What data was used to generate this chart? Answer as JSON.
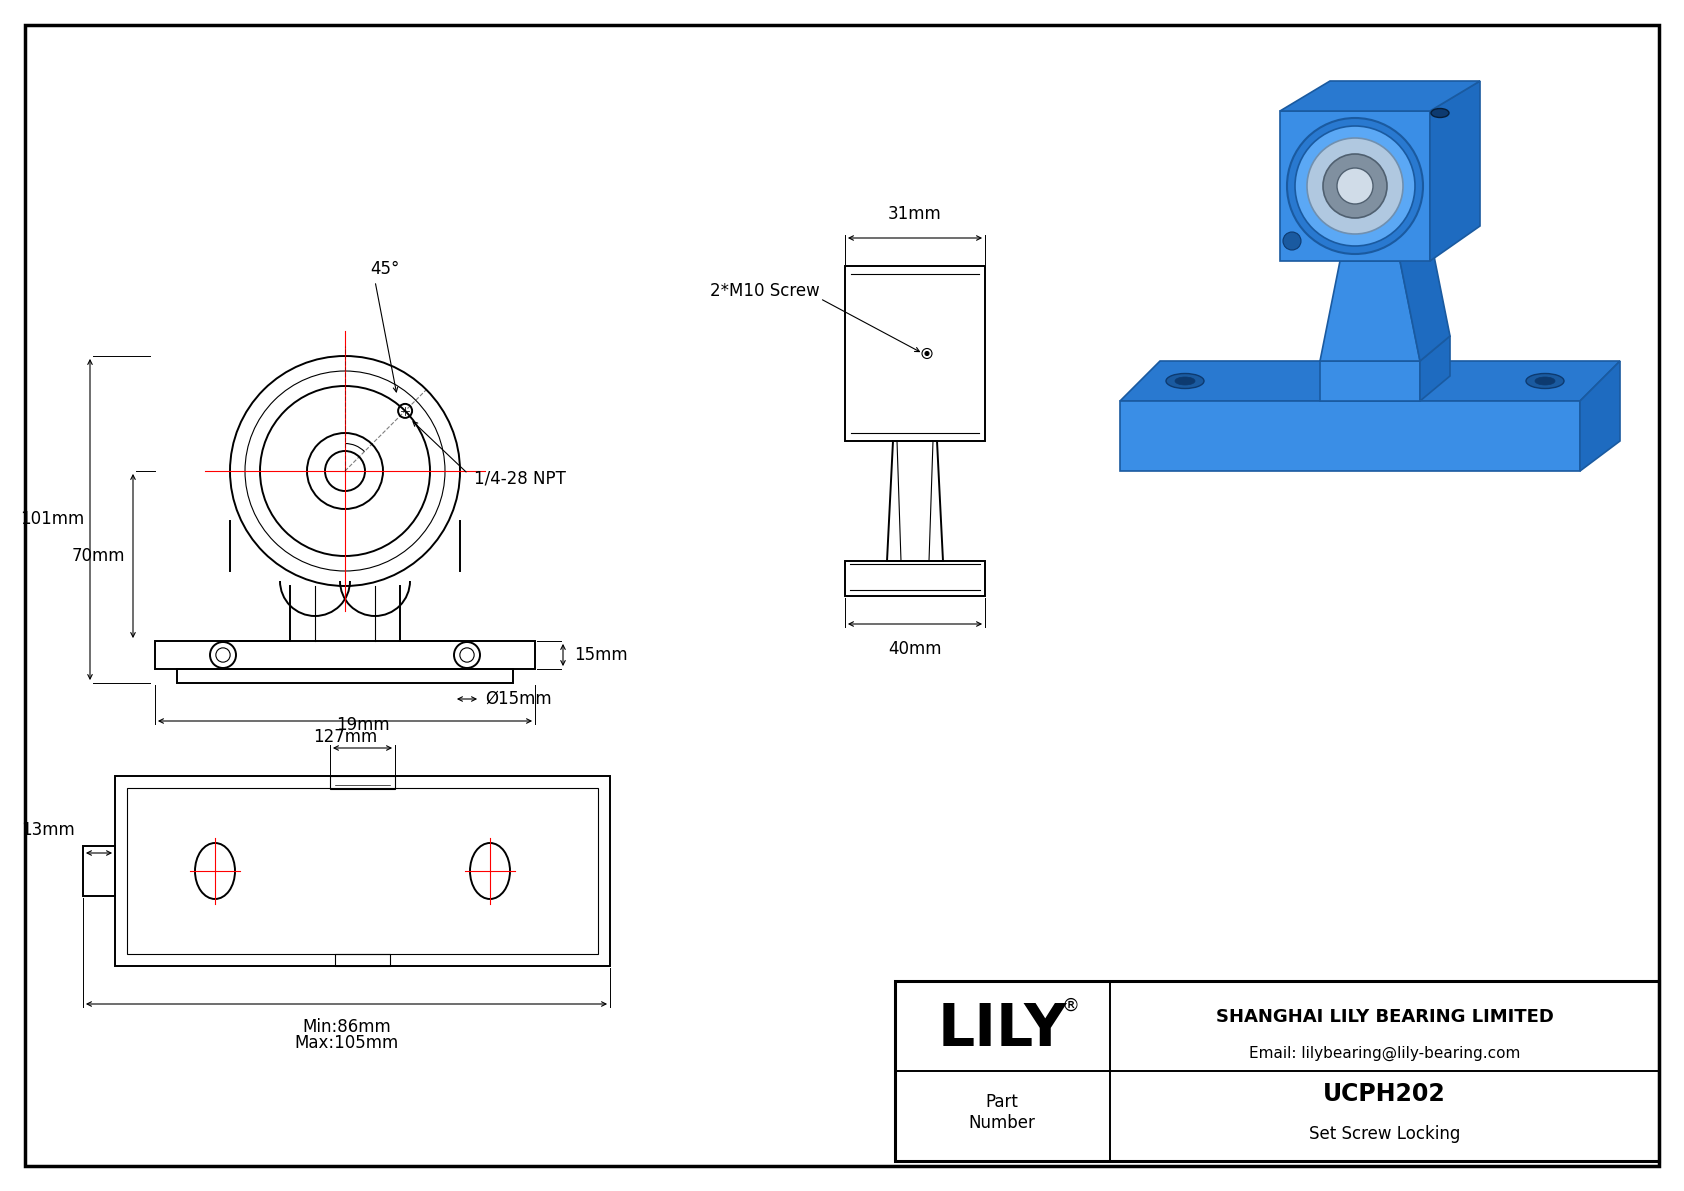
{
  "bg_color": "#ffffff",
  "line_color": "#000000",
  "red_color": "#ff0000",
  "dim_color": "#000000",
  "border_color": "#000000",
  "title": "UCPH202",
  "subtitle": "Set Screw Locking",
  "company": "SHANGHAI LILY BEARING LIMITED",
  "email": "Email: lilybearing@lily-bearing.com",
  "logo": "LILY",
  "logo_reg": "®",
  "part_label": "Part\nNumber",
  "dims": {
    "total_height": "101mm",
    "base_height": "70mm",
    "total_width": "127mm",
    "bolt_hole_dia": "Ø15mm",
    "base_thickness": "15mm",
    "angle": "45°",
    "npt": "1/4-28 NPT",
    "screw": "2*M10 Screw",
    "side_width": "31mm",
    "side_base": "40mm",
    "bot_offset": "19mm",
    "bot_ledge": "13mm",
    "bot_min": "Min:86mm",
    "bot_max": "Max:105mm"
  }
}
